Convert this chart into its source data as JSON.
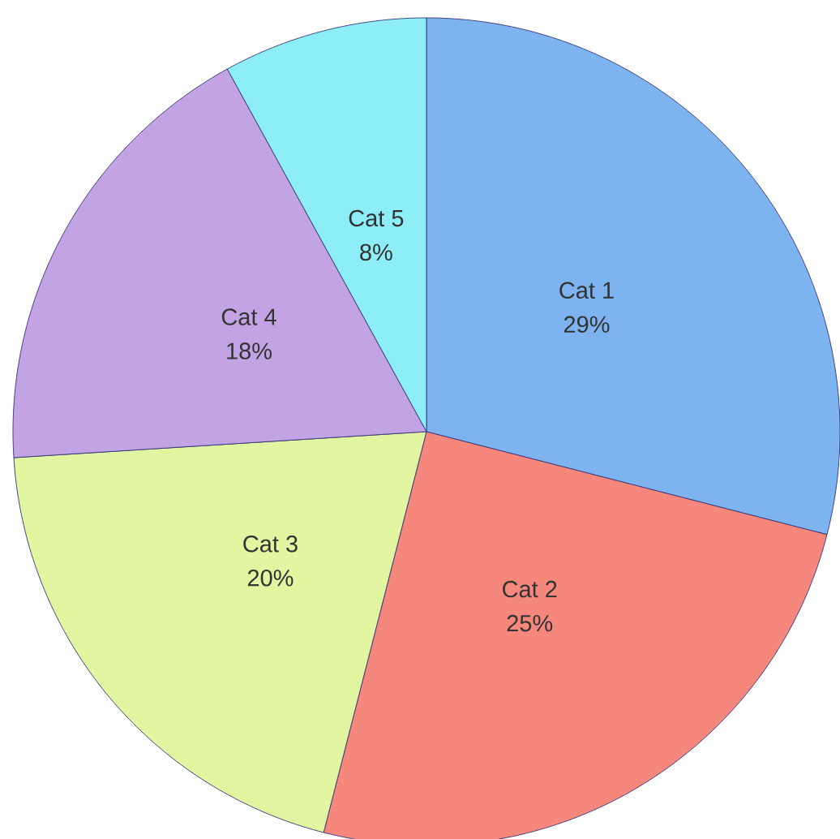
{
  "chart_data": {
    "type": "pie",
    "categories": [
      "Cat 1",
      "Cat 2",
      "Cat 3",
      "Cat 4",
      "Cat 5"
    ],
    "values": [
      29,
      25,
      20,
      18,
      8
    ],
    "colors": [
      "#7db3ef",
      "#f6877d",
      "#e2f5a0",
      "#c2a3e4",
      "#8eeef8"
    ],
    "value_labels": [
      "29%",
      "25%",
      "20%",
      "18%",
      "8%"
    ]
  }
}
